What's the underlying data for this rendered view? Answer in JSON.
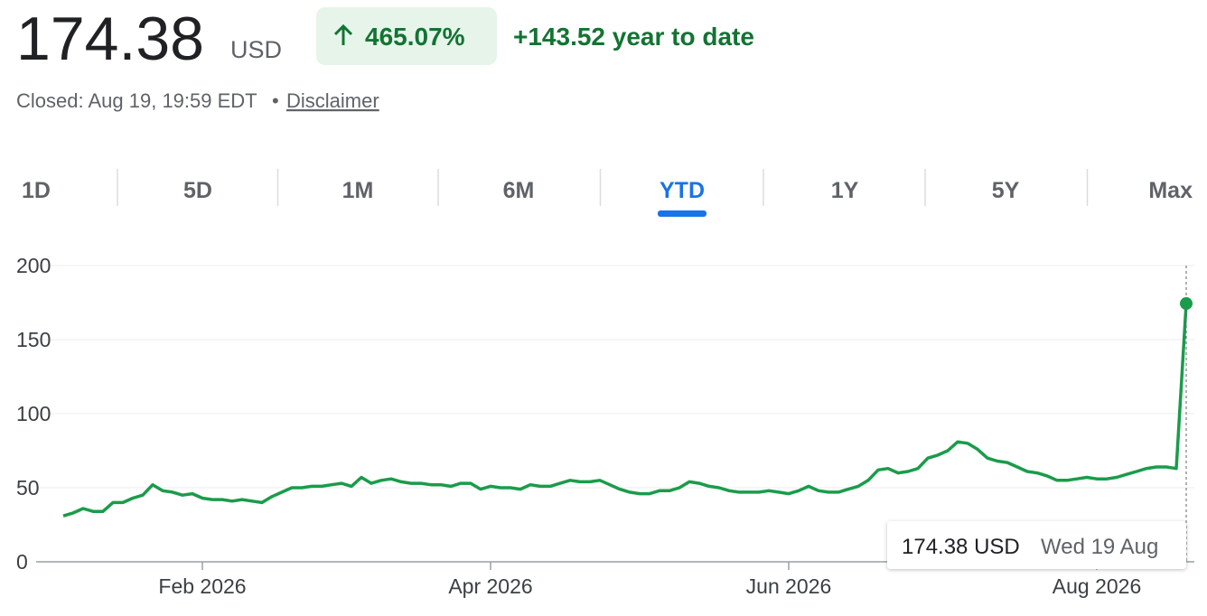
{
  "header": {
    "price": "174.38",
    "currency": "USD",
    "change_percent": "465.07%",
    "change": "+143.52 year to date",
    "status": "Closed: Aug 19, 19:59 EDT",
    "separator": "•",
    "disclaimer": "Disclaimer"
  },
  "tabs": {
    "items": [
      "1D",
      "5D",
      "1M",
      "6M",
      "YTD",
      "1Y",
      "5Y",
      "Max"
    ],
    "selected": "YTD"
  },
  "chart_data": {
    "type": "line",
    "color": "#1a9c4a",
    "categories": [
      null,
      null,
      null,
      null,
      null,
      null,
      null,
      null,
      null,
      null,
      null,
      null,
      null,
      null,
      "Feb 2026",
      null,
      null,
      null,
      null,
      null,
      null,
      null,
      null,
      null,
      null,
      null,
      null,
      null,
      null,
      null,
      null,
      null,
      null,
      null,
      null,
      null,
      null,
      null,
      null,
      null,
      null,
      null,
      null,
      "Apr 2026",
      null,
      null,
      null,
      null,
      null,
      null,
      null,
      null,
      null,
      null,
      null,
      null,
      null,
      null,
      null,
      null,
      null,
      null,
      null,
      null,
      null,
      null,
      null,
      null,
      null,
      null,
      null,
      null,
      null,
      "Jun 2026",
      null,
      null,
      null,
      null,
      null,
      null,
      null,
      null,
      null,
      null,
      null,
      null,
      null,
      null,
      null,
      null,
      null,
      null,
      null,
      null,
      null,
      null,
      null,
      null,
      null,
      null,
      null,
      null,
      null,
      null,
      "Aug 2026",
      null,
      null,
      null,
      null,
      null,
      null,
      null,
      null,
      null
    ],
    "values": [
      31,
      33,
      36,
      34,
      34,
      40,
      40,
      43,
      45,
      52,
      48,
      47,
      45,
      46,
      43,
      42,
      42,
      41,
      42,
      41,
      40,
      44,
      47,
      50,
      50,
      51,
      51,
      52,
      53,
      51,
      57,
      53,
      55,
      56,
      54,
      53,
      53,
      52,
      52,
      51,
      53,
      53,
      49,
      51,
      50,
      50,
      49,
      52,
      51,
      51,
      53,
      55,
      54,
      54,
      55,
      52,
      49,
      47,
      46,
      46,
      48,
      48,
      50,
      54,
      53,
      51,
      50,
      48,
      47,
      47,
      47,
      48,
      47,
      46,
      48,
      51,
      48,
      47,
      47,
      49,
      51,
      55,
      62,
      63,
      60,
      61,
      63,
      70,
      72,
      75,
      81,
      80,
      76,
      70,
      68,
      67,
      64,
      61,
      60,
      58,
      55,
      55,
      56,
      57,
      56,
      56,
      57,
      59,
      61,
      63,
      64,
      64,
      63,
      174.38
    ],
    "ylim": [
      0,
      200
    ],
    "yticks": [
      0,
      50,
      100,
      150,
      200
    ],
    "grid": true,
    "tooltip": {
      "value": "174.38 USD",
      "date": "Wed 19 Aug"
    }
  }
}
